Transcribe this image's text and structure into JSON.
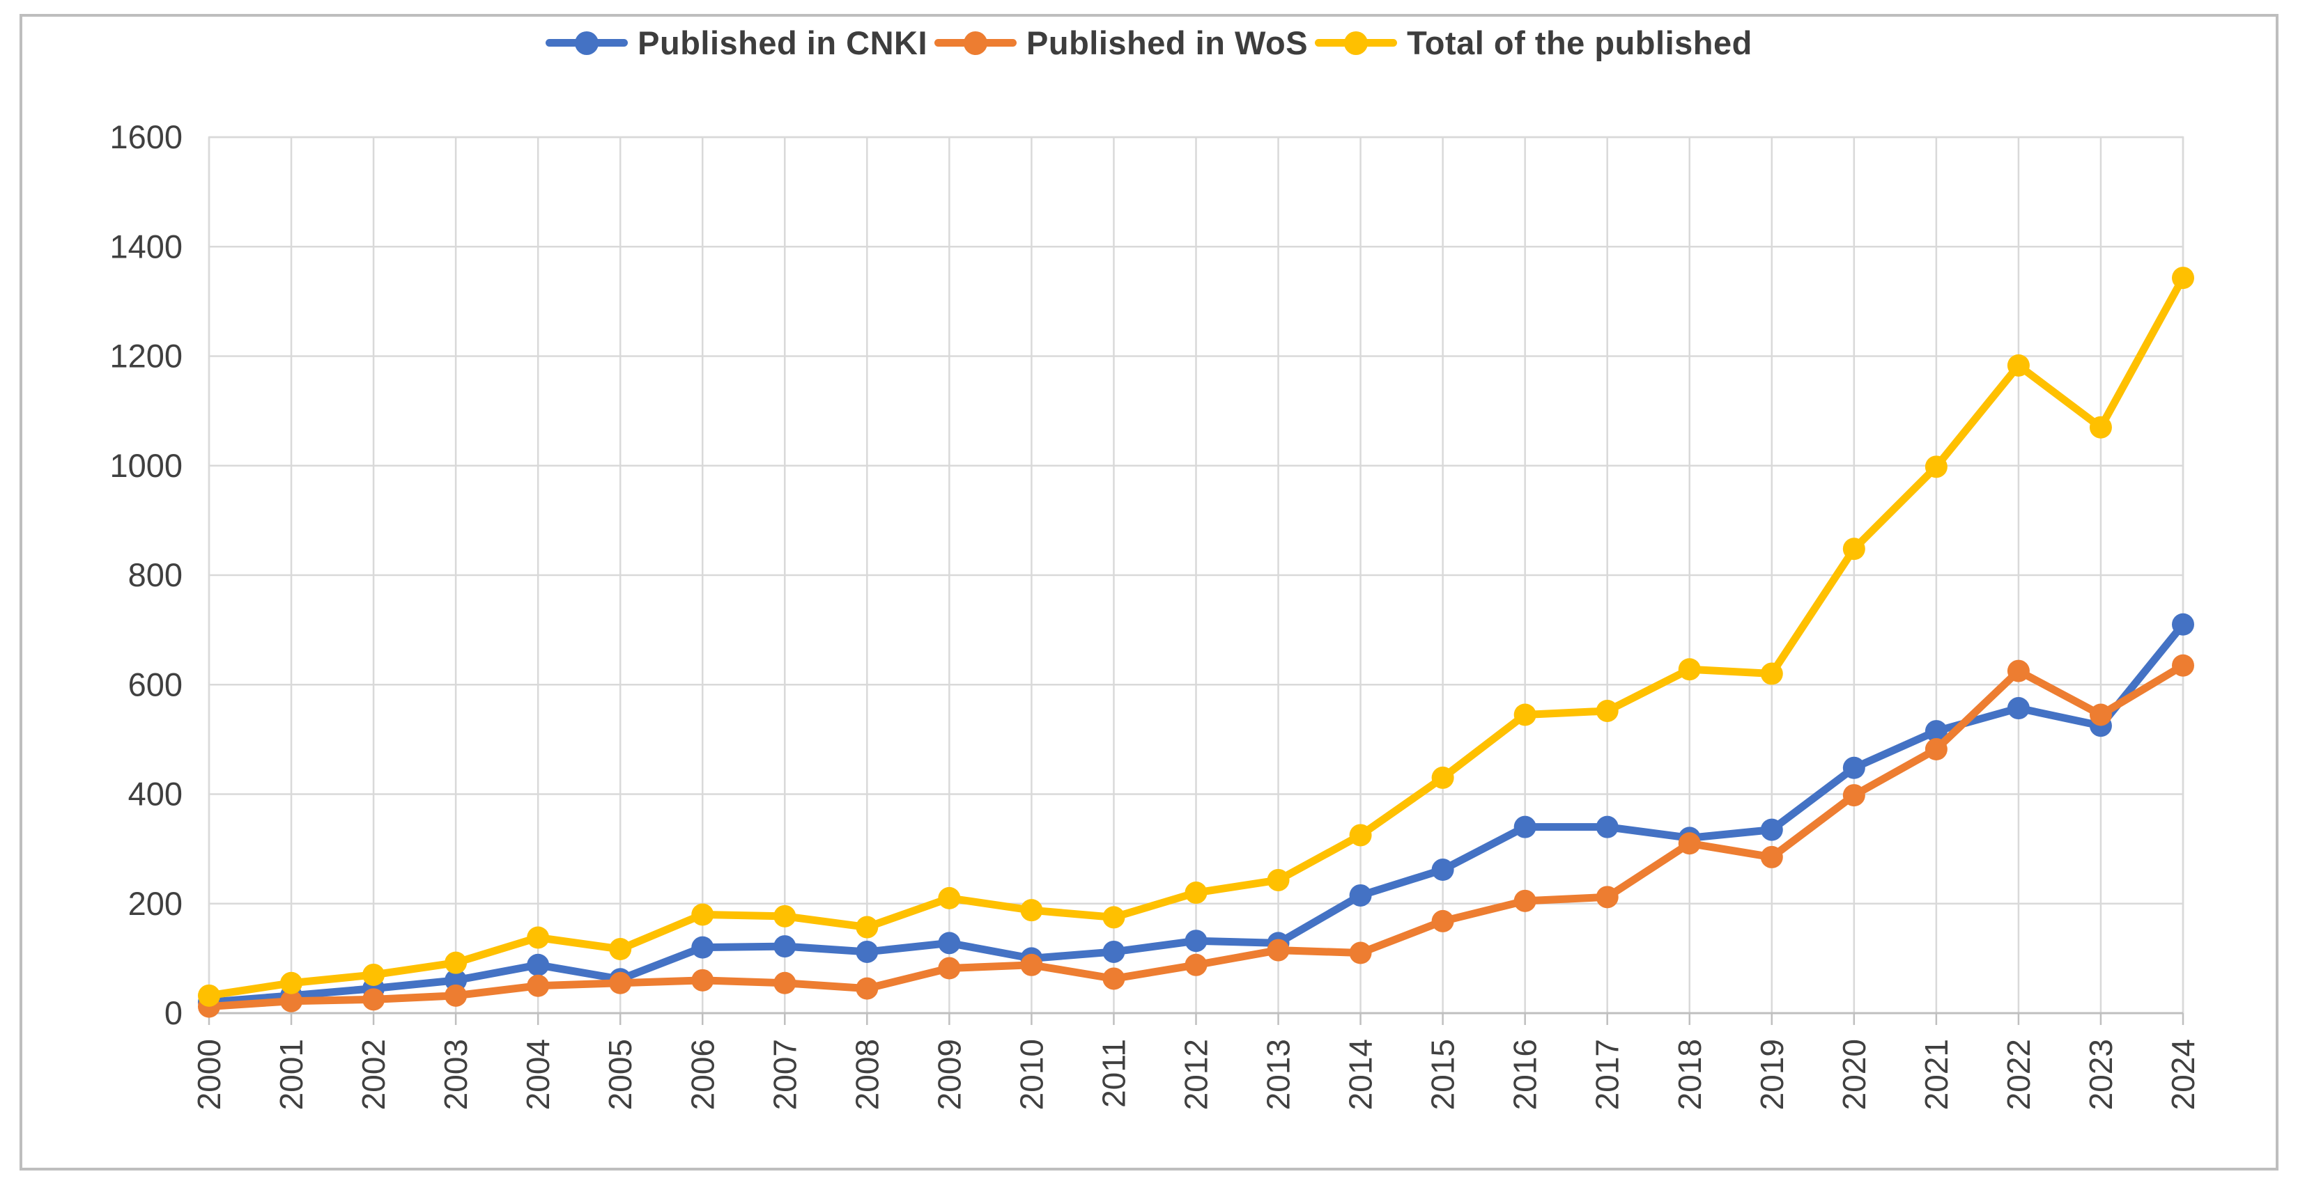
{
  "chart_data": {
    "type": "line",
    "title": "",
    "xlabel": "",
    "ylabel": "",
    "x": [
      2000,
      2001,
      2002,
      2003,
      2004,
      2005,
      2006,
      2007,
      2008,
      2009,
      2010,
      2011,
      2012,
      2013,
      2014,
      2015,
      2016,
      2017,
      2018,
      2019,
      2020,
      2021,
      2022,
      2023,
      2024
    ],
    "series": [
      {
        "name": "Published in CNKI",
        "color": "#4472C4",
        "values": [
          20,
          32,
          45,
          60,
          88,
          62,
          120,
          122,
          112,
          128,
          100,
          112,
          132,
          128,
          215,
          262,
          340,
          340,
          320,
          335,
          448,
          515,
          557,
          525,
          710
        ]
      },
      {
        "name": "Published in WoS",
        "color": "#ED7D31",
        "values": [
          12,
          22,
          25,
          32,
          50,
          55,
          60,
          55,
          45,
          82,
          88,
          63,
          88,
          115,
          110,
          168,
          205,
          212,
          310,
          285,
          398,
          482,
          625,
          545,
          635
        ]
      },
      {
        "name": "Total of the published",
        "color": "#FFC000",
        "values": [
          32,
          55,
          70,
          92,
          138,
          117,
          180,
          177,
          157,
          210,
          188,
          175,
          220,
          243,
          325,
          430,
          545,
          552,
          628,
          620,
          848,
          998,
          1183,
          1070,
          1343
        ]
      }
    ],
    "ylim": [
      0,
      1600
    ],
    "yticks": [
      0,
      200,
      400,
      600,
      800,
      1000,
      1200,
      1400,
      1600
    ],
    "grid": "both",
    "legend_position": "top-center"
  },
  "style": {
    "grid_color": "#D9D9D9",
    "axis_color": "#BFBFBF",
    "tick_text_color": "#404040",
    "legend_text_color": "#3D3D3D",
    "frame_color": "#BEBEBE",
    "background": "#FFFFFF"
  }
}
